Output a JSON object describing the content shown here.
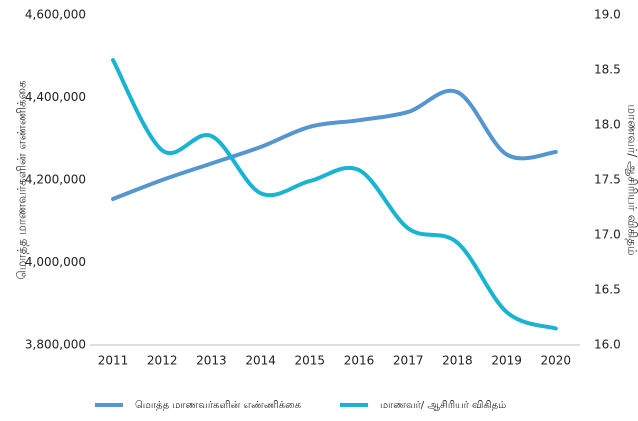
{
  "chart_data": {
    "type": "line",
    "categories": [
      "2011",
      "2012",
      "2013",
      "2014",
      "2015",
      "2016",
      "2017",
      "2018",
      "2019",
      "2020"
    ],
    "series": [
      {
        "name": "மொத்த மாணவர்களின் எண்ணிக்கை",
        "color": "#5596d0",
        "axis": "y",
        "values": [
          4154000,
          4200000,
          4240000,
          4280000,
          4329000,
          4345000,
          4365000,
          4413000,
          4262000,
          4268000
        ]
      },
      {
        "name": "மாணவர்/ ஆசிரியர் விகிதம்",
        "color": "#1ab3d1",
        "axis": "y2",
        "values": [
          18.59,
          17.77,
          17.9,
          17.38,
          17.49,
          17.59,
          17.06,
          16.93,
          16.3,
          16.15
        ]
      }
    ],
    "ylabel": "மொத்த மாணவர்களின் எண்ணிக்கை",
    "y2label": "மாணவர்/ ஆசிரியர் விகிதம்",
    "ylim": [
      3800000,
      4600000
    ],
    "yticks": [
      {
        "value": 3800000,
        "label": "3,800,000"
      },
      {
        "value": 4000000,
        "label": "4,000,000"
      },
      {
        "value": 4200000,
        "label": "4,200,000"
      },
      {
        "value": 4400000,
        "label": "4,400,000"
      },
      {
        "value": 4600000,
        "label": "4,600,000"
      }
    ],
    "y2lim": [
      16,
      19
    ],
    "y2ticks": [
      {
        "value": 16,
        "label": "16.0"
      },
      {
        "value": 16.5,
        "label": "16.5"
      },
      {
        "value": 17,
        "label": "17.0"
      },
      {
        "value": 17.5,
        "label": "17.5"
      },
      {
        "value": 18,
        "label": "18.0"
      },
      {
        "value": 18.5,
        "label": "18.5"
      },
      {
        "value": 19,
        "label": "19.0"
      }
    ],
    "grid": false,
    "legend": "bottom"
  }
}
